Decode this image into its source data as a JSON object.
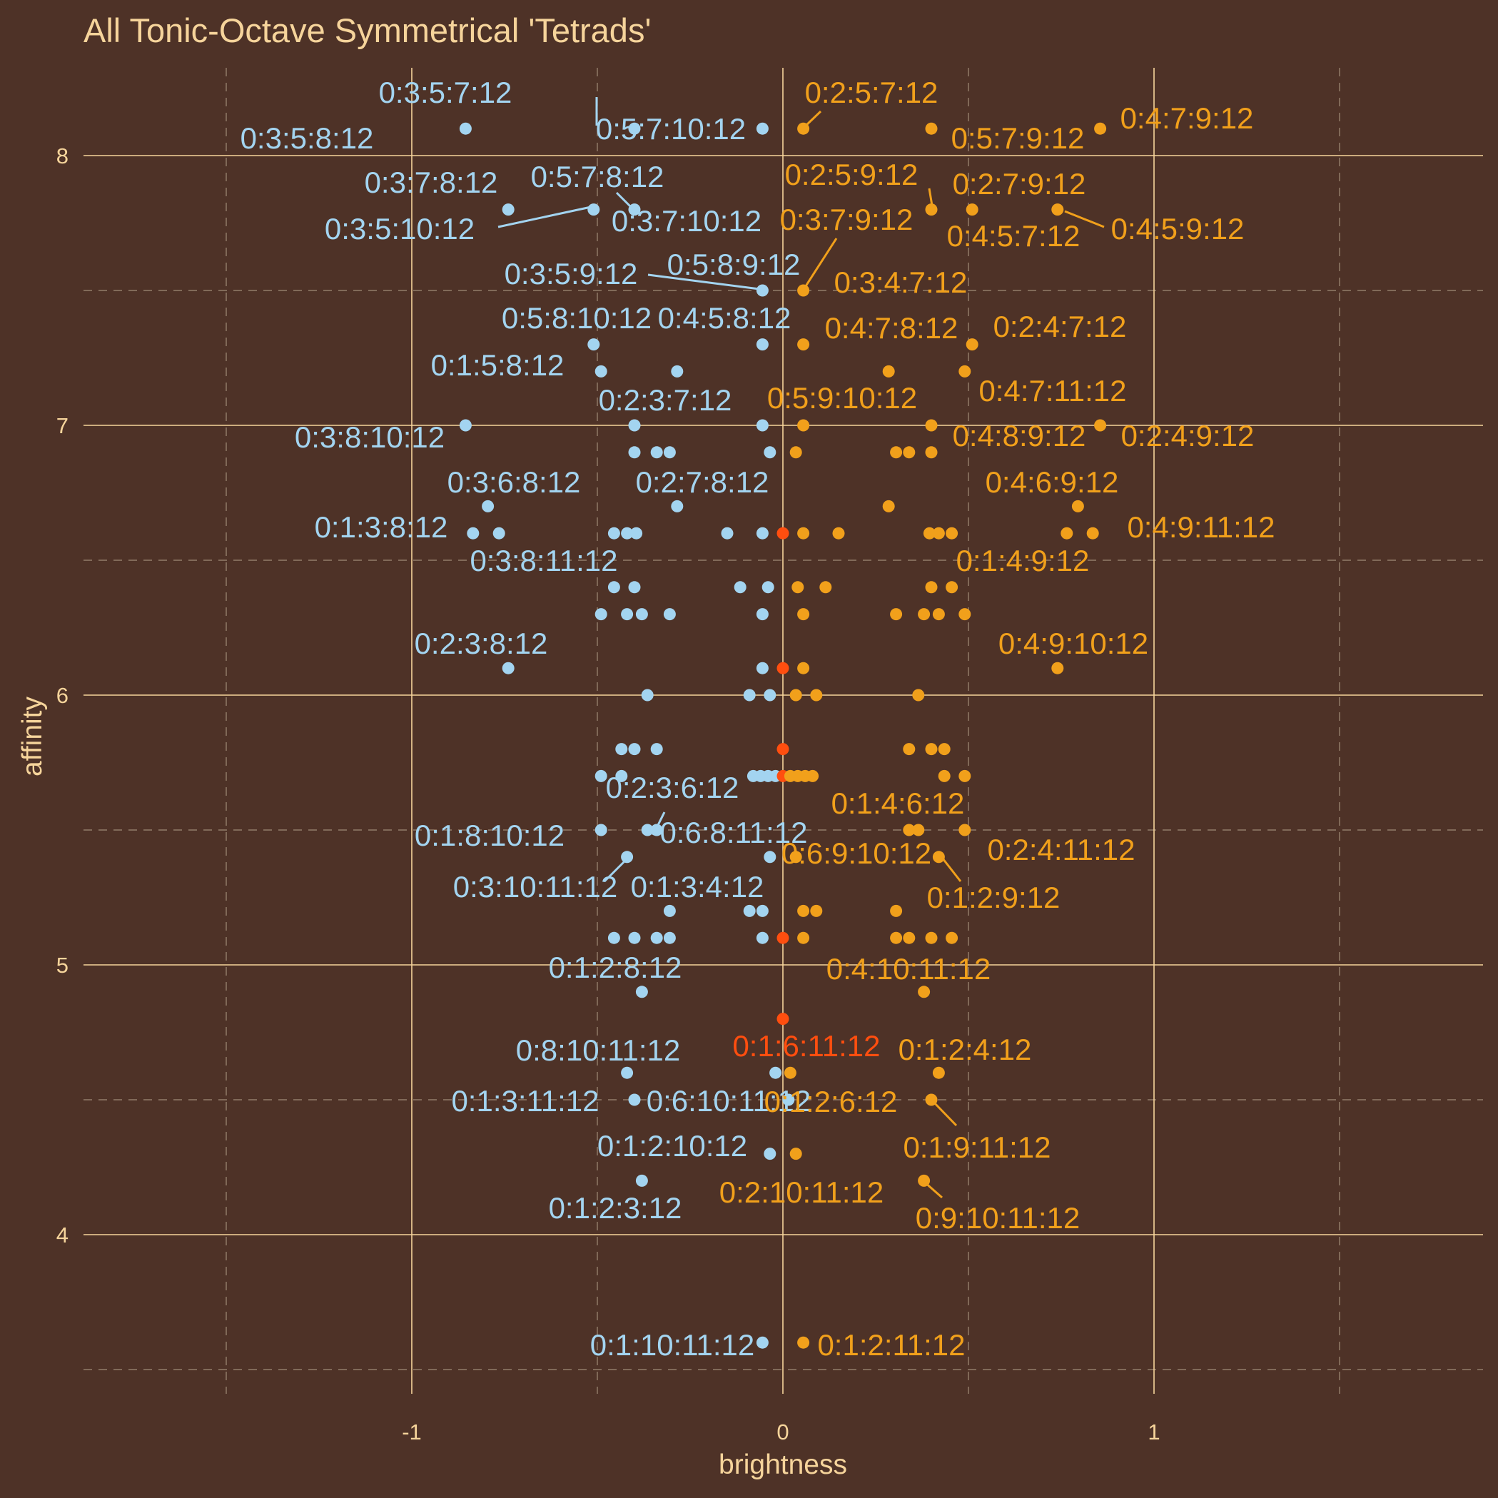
{
  "chart_data": {
    "type": "scatter",
    "title": "All Tonic-Octave Symmetrical 'Tetrads'",
    "xlabel": "brightness",
    "ylabel": "affinity",
    "xlim": [
      -1.9,
      1.9
    ],
    "ylim": [
      3.4,
      8.3
    ],
    "x_ticks": [
      -1,
      0,
      1
    ],
    "y_ticks": [
      4,
      5,
      6,
      7,
      8
    ],
    "grid": true,
    "legend": "none",
    "colors": {
      "background": "#4e3227",
      "dark": "#a3d4f0",
      "bright": "#f1a01b",
      "neutral": "#ff4e0f",
      "grid": "#f6d49b",
      "text": "#f6d49b"
    },
    "points": [
      {
        "x": -0.855,
        "y": 8.1,
        "g": "dark",
        "label": "0:3:5:8:12"
      },
      {
        "x": -0.4,
        "y": 8.1,
        "g": "dark",
        "label": "0:3:5:7:12"
      },
      {
        "x": -0.055,
        "y": 8.1,
        "g": "dark",
        "label": "0:5:7:10:12"
      },
      {
        "x": 0.055,
        "y": 8.1,
        "g": "bright",
        "label": "0:2:5:7:12"
      },
      {
        "x": 0.4,
        "y": 8.1,
        "g": "bright",
        "label": "0:5:7:9:12"
      },
      {
        "x": 0.855,
        "y": 8.1,
        "g": "bright",
        "label": "0:4:7:9:12"
      },
      {
        "x": -0.74,
        "y": 7.8,
        "g": "dark",
        "label": "0:3:7:8:12"
      },
      {
        "x": -0.51,
        "y": 7.8,
        "g": "dark",
        "label": "0:3:5:10:12"
      },
      {
        "x": -0.4,
        "y": 7.8,
        "g": "dark",
        "label": "0:3:7:10:12"
      },
      {
        "x": 0.4,
        "y": 7.8,
        "g": "bright",
        "label": "0:2:5:9:12"
      },
      {
        "x": 0.51,
        "y": 7.8,
        "g": "bright",
        "label": "0:4:5:7:12"
      },
      {
        "x": 0.74,
        "y": 7.8,
        "g": "bright",
        "label": "0:4:5:9:12"
      },
      {
        "x": -0.055,
        "y": 7.5,
        "g": "dark",
        "label": "0:3:5:9:12"
      },
      {
        "x": 0.055,
        "y": 7.5,
        "g": "bright",
        "label": "0:3:7:9:12"
      },
      {
        "x": -0.51,
        "y": 7.3,
        "g": "dark",
        "label": "0:5:8:10:12"
      },
      {
        "x": -0.055,
        "y": 7.3,
        "g": "dark",
        "label": "0:4:5:8:12"
      },
      {
        "x": 0.055,
        "y": 7.3,
        "g": "bright",
        "label": "0:4:7:8:12"
      },
      {
        "x": 0.51,
        "y": 7.3,
        "g": "bright",
        "label": "0:2:4:7:12"
      },
      {
        "x": -0.49,
        "y": 7.2,
        "g": "dark",
        "label": "0:1:5:8:12"
      },
      {
        "x": -0.285,
        "y": 7.2,
        "g": "dark",
        "label": ""
      },
      {
        "x": 0.285,
        "y": 7.2,
        "g": "bright",
        "label": ""
      },
      {
        "x": 0.49,
        "y": 7.2,
        "g": "bright",
        "label": "0:4:7:11:12"
      },
      {
        "x": -0.855,
        "y": 7.0,
        "g": "dark",
        "label": "0:3:8:10:12"
      },
      {
        "x": -0.4,
        "y": 7.0,
        "g": "dark",
        "label": "0:2:3:7:12"
      },
      {
        "x": -0.055,
        "y": 7.0,
        "g": "dark",
        "label": ""
      },
      {
        "x": 0.055,
        "y": 7.0,
        "g": "bright",
        "label": "0:5:9:10:12"
      },
      {
        "x": 0.4,
        "y": 7.0,
        "g": "bright",
        "label": "0:4:8:9:12"
      },
      {
        "x": 0.855,
        "y": 7.0,
        "g": "bright",
        "label": "0:2:4:9:12"
      },
      {
        "x": -0.4,
        "y": 6.9,
        "g": "dark",
        "label": ""
      },
      {
        "x": -0.34,
        "y": 6.9,
        "g": "dark",
        "label": ""
      },
      {
        "x": -0.305,
        "y": 6.9,
        "g": "dark",
        "label": ""
      },
      {
        "x": -0.035,
        "y": 6.9,
        "g": "dark",
        "label": ""
      },
      {
        "x": 0.035,
        "y": 6.9,
        "g": "bright",
        "label": ""
      },
      {
        "x": 0.305,
        "y": 6.9,
        "g": "bright",
        "label": ""
      },
      {
        "x": 0.34,
        "y": 6.9,
        "g": "bright",
        "label": ""
      },
      {
        "x": 0.4,
        "y": 6.9,
        "g": "bright",
        "label": ""
      },
      {
        "x": -0.795,
        "y": 6.7,
        "g": "dark",
        "label": "0:3:6:8:12"
      },
      {
        "x": -0.285,
        "y": 6.7,
        "g": "dark",
        "label": "0:2:7:8:12"
      },
      {
        "x": 0.285,
        "y": 6.7,
        "g": "bright",
        "label": ""
      },
      {
        "x": 0.795,
        "y": 6.7,
        "g": "bright",
        "label": "0:4:6:9:12"
      },
      {
        "x": -0.835,
        "y": 6.6,
        "g": "dark",
        "label": "0:1:3:8:12"
      },
      {
        "x": -0.765,
        "y": 6.6,
        "g": "dark",
        "label": ""
      },
      {
        "x": -0.455,
        "y": 6.6,
        "g": "dark",
        "label": "0:3:8:11:12"
      },
      {
        "x": -0.42,
        "y": 6.6,
        "g": "dark",
        "label": ""
      },
      {
        "x": -0.395,
        "y": 6.6,
        "g": "dark",
        "label": ""
      },
      {
        "x": -0.15,
        "y": 6.6,
        "g": "dark",
        "label": ""
      },
      {
        "x": -0.055,
        "y": 6.6,
        "g": "dark",
        "label": ""
      },
      {
        "x": 0.0,
        "y": 6.6,
        "g": "neutral",
        "label": ""
      },
      {
        "x": 0.055,
        "y": 6.6,
        "g": "bright",
        "label": ""
      },
      {
        "x": 0.15,
        "y": 6.6,
        "g": "bright",
        "label": ""
      },
      {
        "x": 0.395,
        "y": 6.6,
        "g": "bright",
        "label": ""
      },
      {
        "x": 0.42,
        "y": 6.6,
        "g": "bright",
        "label": ""
      },
      {
        "x": 0.455,
        "y": 6.6,
        "g": "bright",
        "label": "0:1:4:9:12"
      },
      {
        "x": 0.765,
        "y": 6.6,
        "g": "bright",
        "label": ""
      },
      {
        "x": 0.835,
        "y": 6.6,
        "g": "bright",
        "label": "0:4:9:11:12"
      },
      {
        "x": -0.455,
        "y": 6.4,
        "g": "dark",
        "label": ""
      },
      {
        "x": -0.4,
        "y": 6.4,
        "g": "dark",
        "label": ""
      },
      {
        "x": -0.115,
        "y": 6.4,
        "g": "dark",
        "label": ""
      },
      {
        "x": -0.04,
        "y": 6.4,
        "g": "dark",
        "label": ""
      },
      {
        "x": 0.04,
        "y": 6.4,
        "g": "bright",
        "label": ""
      },
      {
        "x": 0.115,
        "y": 6.4,
        "g": "bright",
        "label": ""
      },
      {
        "x": 0.4,
        "y": 6.4,
        "g": "bright",
        "label": ""
      },
      {
        "x": 0.455,
        "y": 6.4,
        "g": "bright",
        "label": ""
      },
      {
        "x": -0.49,
        "y": 6.3,
        "g": "dark",
        "label": ""
      },
      {
        "x": -0.42,
        "y": 6.3,
        "g": "dark",
        "label": ""
      },
      {
        "x": -0.38,
        "y": 6.3,
        "g": "dark",
        "label": ""
      },
      {
        "x": -0.305,
        "y": 6.3,
        "g": "dark",
        "label": ""
      },
      {
        "x": -0.055,
        "y": 6.3,
        "g": "dark",
        "label": ""
      },
      {
        "x": 0.055,
        "y": 6.3,
        "g": "bright",
        "label": ""
      },
      {
        "x": 0.305,
        "y": 6.3,
        "g": "bright",
        "label": ""
      },
      {
        "x": 0.38,
        "y": 6.3,
        "g": "bright",
        "label": ""
      },
      {
        "x": 0.42,
        "y": 6.3,
        "g": "bright",
        "label": ""
      },
      {
        "x": 0.49,
        "y": 6.3,
        "g": "bright",
        "label": ""
      },
      {
        "x": -0.74,
        "y": 6.1,
        "g": "dark",
        "label": "0:2:3:8:12"
      },
      {
        "x": -0.055,
        "y": 6.1,
        "g": "dark",
        "label": ""
      },
      {
        "x": 0.0,
        "y": 6.1,
        "g": "neutral",
        "label": ""
      },
      {
        "x": 0.055,
        "y": 6.1,
        "g": "bright",
        "label": ""
      },
      {
        "x": 0.74,
        "y": 6.1,
        "g": "bright",
        "label": "0:4:9:10:12"
      },
      {
        "x": -0.365,
        "y": 6.0,
        "g": "dark",
        "label": ""
      },
      {
        "x": -0.09,
        "y": 6.0,
        "g": "dark",
        "label": ""
      },
      {
        "x": -0.035,
        "y": 6.0,
        "g": "dark",
        "label": ""
      },
      {
        "x": 0.035,
        "y": 6.0,
        "g": "bright",
        "label": ""
      },
      {
        "x": 0.09,
        "y": 6.0,
        "g": "bright",
        "label": ""
      },
      {
        "x": 0.365,
        "y": 6.0,
        "g": "bright",
        "label": ""
      },
      {
        "x": -0.435,
        "y": 5.8,
        "g": "dark",
        "label": ""
      },
      {
        "x": -0.4,
        "y": 5.8,
        "g": "dark",
        "label": ""
      },
      {
        "x": -0.34,
        "y": 5.8,
        "g": "dark",
        "label": ""
      },
      {
        "x": 0.0,
        "y": 5.8,
        "g": "neutral",
        "label": ""
      },
      {
        "x": 0.34,
        "y": 5.8,
        "g": "bright",
        "label": ""
      },
      {
        "x": 0.4,
        "y": 5.8,
        "g": "bright",
        "label": ""
      },
      {
        "x": 0.435,
        "y": 5.8,
        "g": "bright",
        "label": ""
      },
      {
        "x": -0.49,
        "y": 5.7,
        "g": "dark",
        "label": ""
      },
      {
        "x": -0.435,
        "y": 5.7,
        "g": "dark",
        "label": ""
      },
      {
        "x": -0.08,
        "y": 5.7,
        "g": "dark",
        "label": ""
      },
      {
        "x": -0.06,
        "y": 5.7,
        "g": "dark",
        "label": ""
      },
      {
        "x": -0.04,
        "y": 5.7,
        "g": "dark",
        "label": ""
      },
      {
        "x": -0.02,
        "y": 5.7,
        "g": "dark",
        "label": ""
      },
      {
        "x": 0.0,
        "y": 5.7,
        "g": "neutral",
        "label": ""
      },
      {
        "x": 0.02,
        "y": 5.7,
        "g": "bright",
        "label": ""
      },
      {
        "x": 0.04,
        "y": 5.7,
        "g": "bright",
        "label": ""
      },
      {
        "x": 0.06,
        "y": 5.7,
        "g": "bright",
        "label": ""
      },
      {
        "x": 0.08,
        "y": 5.7,
        "g": "bright",
        "label": ""
      },
      {
        "x": 0.435,
        "y": 5.7,
        "g": "bright",
        "label": ""
      },
      {
        "x": 0.49,
        "y": 5.7,
        "g": "bright",
        "label": ""
      },
      {
        "x": -0.49,
        "y": 5.5,
        "g": "dark",
        "label": "0:1:8:10:12"
      },
      {
        "x": -0.365,
        "y": 5.5,
        "g": "dark",
        "label": "0:2:3:6:12"
      },
      {
        "x": -0.34,
        "y": 5.5,
        "g": "dark",
        "label": "0:6:8:11:12"
      },
      {
        "x": 0.34,
        "y": 5.5,
        "g": "bright",
        "label": "0:1:4:6:12"
      },
      {
        "x": 0.365,
        "y": 5.5,
        "g": "bright",
        "label": ""
      },
      {
        "x": 0.49,
        "y": 5.5,
        "g": "bright",
        "label": "0:2:4:11:12"
      },
      {
        "x": -0.42,
        "y": 5.4,
        "g": "dark",
        "label": "0:3:10:11:12"
      },
      {
        "x": -0.035,
        "y": 5.4,
        "g": "dark",
        "label": ""
      },
      {
        "x": 0.035,
        "y": 5.4,
        "g": "bright",
        "label": "0:6:9:10:12"
      },
      {
        "x": 0.42,
        "y": 5.4,
        "g": "bright",
        "label": "0:1:2:9:12"
      },
      {
        "x": -0.305,
        "y": 5.2,
        "g": "dark",
        "label": "0:1:3:4:12"
      },
      {
        "x": -0.09,
        "y": 5.2,
        "g": "dark",
        "label": ""
      },
      {
        "x": -0.055,
        "y": 5.2,
        "g": "dark",
        "label": ""
      },
      {
        "x": 0.055,
        "y": 5.2,
        "g": "bright",
        "label": ""
      },
      {
        "x": 0.09,
        "y": 5.2,
        "g": "bright",
        "label": ""
      },
      {
        "x": 0.305,
        "y": 5.2,
        "g": "bright",
        "label": ""
      },
      {
        "x": -0.455,
        "y": 5.1,
        "g": "dark",
        "label": ""
      },
      {
        "x": -0.4,
        "y": 5.1,
        "g": "dark",
        "label": ""
      },
      {
        "x": -0.34,
        "y": 5.1,
        "g": "dark",
        "label": ""
      },
      {
        "x": -0.305,
        "y": 5.1,
        "g": "dark",
        "label": ""
      },
      {
        "x": -0.055,
        "y": 5.1,
        "g": "dark",
        "label": ""
      },
      {
        "x": 0.0,
        "y": 5.1,
        "g": "neutral",
        "label": ""
      },
      {
        "x": 0.055,
        "y": 5.1,
        "g": "bright",
        "label": ""
      },
      {
        "x": 0.305,
        "y": 5.1,
        "g": "bright",
        "label": ""
      },
      {
        "x": 0.34,
        "y": 5.1,
        "g": "bright",
        "label": ""
      },
      {
        "x": 0.4,
        "y": 5.1,
        "g": "bright",
        "label": ""
      },
      {
        "x": 0.455,
        "y": 5.1,
        "g": "bright",
        "label": ""
      },
      {
        "x": -0.38,
        "y": 4.9,
        "g": "dark",
        "label": "0:1:2:8:12"
      },
      {
        "x": 0.38,
        "y": 4.9,
        "g": "bright",
        "label": "0:4:10:11:12"
      },
      {
        "x": 0.0,
        "y": 4.8,
        "g": "neutral",
        "label": "0:1:6:11:12"
      },
      {
        "x": -0.42,
        "y": 4.6,
        "g": "dark",
        "label": "0:8:10:11:12"
      },
      {
        "x": -0.02,
        "y": 4.6,
        "g": "dark",
        "label": ""
      },
      {
        "x": 0.02,
        "y": 4.6,
        "g": "bright",
        "label": ""
      },
      {
        "x": 0.42,
        "y": 4.6,
        "g": "bright",
        "label": "0:1:2:4:12"
      },
      {
        "x": -0.4,
        "y": 4.5,
        "g": "dark",
        "label": "0:1:3:11:12"
      },
      {
        "x": 0.015,
        "y": 4.5,
        "g": "dark",
        "label": "0:6:10:11:12"
      },
      {
        "x": 0.4,
        "y": 4.5,
        "g": "bright",
        "label": "0:1:9:11:12"
      },
      {
        "x": -0.035,
        "y": 4.3,
        "g": "dark",
        "label": "0:1:2:10:12"
      },
      {
        "x": 0.035,
        "y": 4.3,
        "g": "bright",
        "label": "0:2:10:11:12"
      },
      {
        "x": -0.38,
        "y": 4.2,
        "g": "dark",
        "label": "0:1:2:3:12"
      },
      {
        "x": 0.38,
        "y": 4.2,
        "g": "bright",
        "label": "0:9:10:11:12"
      },
      {
        "x": -0.055,
        "y": 3.6,
        "g": "dark",
        "label": "0:1:10:11:12"
      },
      {
        "x": 0.055,
        "y": 3.6,
        "g": "bright",
        "label": "0:1:2:11:12"
      }
    ],
    "extra_labels": [
      {
        "text": "0:3:4:7:12",
        "g": "bright"
      },
      {
        "text": "0:1:2:6:12",
        "g": "bright"
      },
      {
        "text": "0:2:7:9:12",
        "g": "bright"
      },
      {
        "text": "0:5:7:8:12",
        "g": "dark"
      },
      {
        "text": "0:5:8:9:12",
        "g": "dark"
      }
    ]
  }
}
